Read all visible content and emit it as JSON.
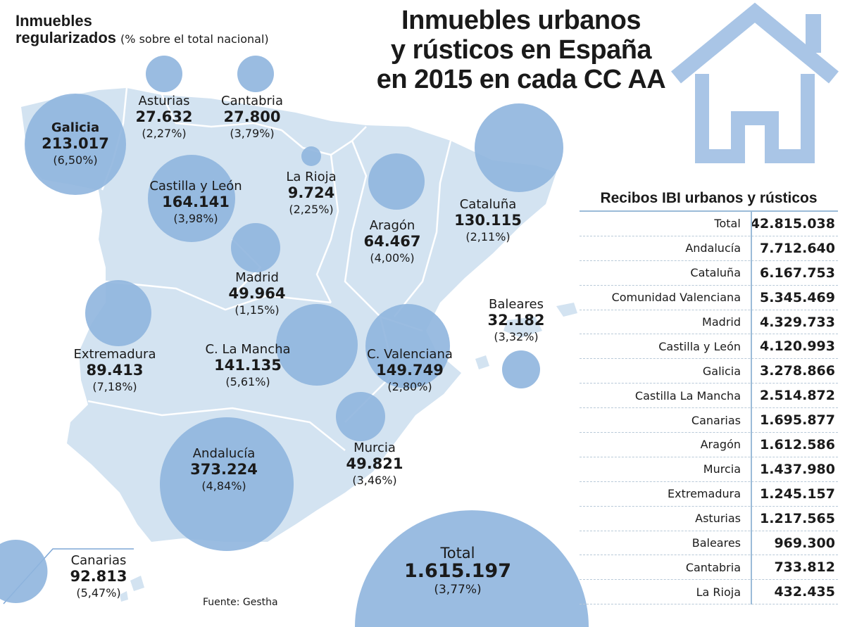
{
  "header": {
    "subtitle_line1": "Inmuebles",
    "subtitle_line2": "regularizados",
    "subtitle_note": "(% sobre el total nacional)",
    "title_line1": "Inmuebles urbanos",
    "title_line2": "y rústicos en España",
    "title_line3": "en 2015 en cada CC AA"
  },
  "icons": {
    "house": "house-icon"
  },
  "colors": {
    "map": "#d3e3f1",
    "bubble": "#8fb5de",
    "house": "#a9c5e6",
    "text": "#1a1a1a"
  },
  "regions": [
    {
      "name": "Galicia",
      "value": "213.017",
      "pct": "(6,50%)"
    },
    {
      "name": "Asturias",
      "value": "27.632",
      "pct": "(2,27%)"
    },
    {
      "name": "Cantabria",
      "value": "27.800",
      "pct": "(3,79%)"
    },
    {
      "name": "La Rioja",
      "value": "9.724",
      "pct": "(2,25%)"
    },
    {
      "name": "Castilla y León",
      "value": "164.141",
      "pct": "(3,98%)"
    },
    {
      "name": "Aragón",
      "value": "64.467",
      "pct": "(4,00%)"
    },
    {
      "name": "Cataluña",
      "value": "130.115",
      "pct": "(2,11%)"
    },
    {
      "name": "Madrid",
      "value": "49.964",
      "pct": "(1,15%)"
    },
    {
      "name": "Extremadura",
      "value": "89.413",
      "pct": "(7,18%)"
    },
    {
      "name": "C. La Mancha",
      "value": "141.135",
      "pct": "(5,61%)"
    },
    {
      "name": "C. Valenciana",
      "value": "149.749",
      "pct": "(2,80%)"
    },
    {
      "name": "Baleares",
      "value": "32.182",
      "pct": "(3,32%)"
    },
    {
      "name": "Murcia",
      "value": "49.821",
      "pct": "(3,46%)"
    },
    {
      "name": "Andalucía",
      "value": "373.224",
      "pct": "(4,84%)"
    },
    {
      "name": "Canarias",
      "value": "92.813",
      "pct": "(5,47%)"
    }
  ],
  "total": {
    "name": "Total",
    "value": "1.615.197",
    "pct": "(3,77%)"
  },
  "source": "Fuente: Gestha",
  "table": {
    "title": "Recibos IBI urbanos y rústicos",
    "rows": [
      {
        "label": "Total",
        "value": "42.815.038"
      },
      {
        "label": "Andalucía",
        "value": "7.712.640"
      },
      {
        "label": "Cataluña",
        "value": "6.167.753"
      },
      {
        "label": "Comunidad Valenciana",
        "value": "5.345.469"
      },
      {
        "label": "Madrid",
        "value": "4.329.733"
      },
      {
        "label": "Castilla y León",
        "value": "4.120.993"
      },
      {
        "label": "Galicia",
        "value": "3.278.866"
      },
      {
        "label": "Castilla La Mancha",
        "value": "2.514.872"
      },
      {
        "label": "Canarias",
        "value": "1.695.877"
      },
      {
        "label": "Aragón",
        "value": "1.612.586"
      },
      {
        "label": "Murcia",
        "value": "1.437.980"
      },
      {
        "label": "Extremadura",
        "value": "1.245.157"
      },
      {
        "label": "Asturias",
        "value": "1.217.565"
      },
      {
        "label": "Baleares",
        "value": "969.300"
      },
      {
        "label": "Cantabria",
        "value": "733.812"
      },
      {
        "label": "La Rioja",
        "value": "432.435"
      }
    ]
  }
}
